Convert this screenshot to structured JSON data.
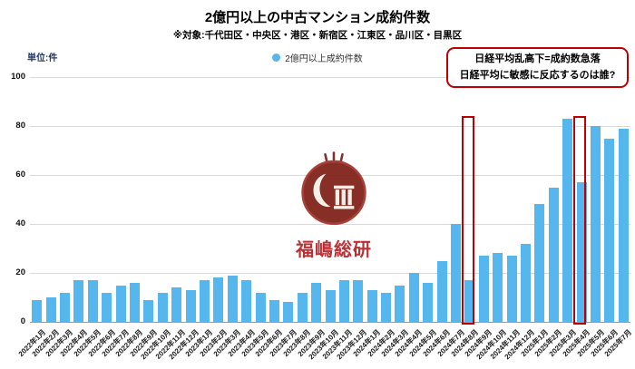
{
  "header": {
    "title": "2億円以上の中古マンション成約件数",
    "subtitle": "※対象:千代田区・中央区・港区・新宿区・江東区・品川区・目黒区",
    "unit_label": "単位:件",
    "legend_label": "2億円以上成約件数"
  },
  "annotation": {
    "line1": "日経平均乱高下=成約数急落",
    "line2": "日経平均に敏感に反応するのは誰?"
  },
  "watermark": {
    "text": "福嶋総研"
  },
  "colors": {
    "bar": "#55b7ee",
    "highlight": "#c00000",
    "grid": "#d9d9d9",
    "unit_label": "#203864",
    "watermark_red": "#b41f24"
  },
  "chart_data": {
    "type": "bar",
    "title": "2億円以上の中古マンション成約件数",
    "ylabel": "件",
    "ylim": [
      0,
      100
    ],
    "yticks": [
      0,
      20,
      40,
      60,
      80,
      100
    ],
    "grid": true,
    "legend_position": "top",
    "series_name": "2億円以上成約件数",
    "categories": [
      "2022年1月",
      "2022年2月",
      "2022年3月",
      "2022年4月",
      "2022年5月",
      "2022年6月",
      "2022年7月",
      "2022年8月",
      "2022年9月",
      "2022年10月",
      "2022年11月",
      "2022年12月",
      "2023年1月",
      "2023年2月",
      "2023年3月",
      "2023年4月",
      "2023年5月",
      "2023年6月",
      "2023年7月",
      "2023年8月",
      "2023年9月",
      "2023年10月",
      "2023年11月",
      "2023年12月",
      "2024年1月",
      "2024年2月",
      "2024年3月",
      "2024年4月",
      "2024年5月",
      "2024年6月",
      "2024年7月",
      "2024年8月",
      "2024年9月",
      "2024年10月",
      "2024年11月",
      "2024年12月",
      "2025年1月",
      "2025年2月",
      "2025年3月",
      "2025年4月",
      "2025年5月",
      "2025年6月",
      "2025年7月"
    ],
    "values": [
      9,
      10,
      12,
      17,
      17,
      12,
      15,
      16,
      9,
      12,
      14,
      13,
      17,
      18,
      19,
      17,
      12,
      9,
      8,
      12,
      16,
      13,
      17,
      17,
      13,
      12,
      15,
      20,
      16,
      25,
      40,
      17,
      27,
      28,
      27,
      32,
      48,
      55,
      83,
      57,
      80,
      75,
      79
    ],
    "highlighted_categories": [
      "2024年8月",
      "2025年4月"
    ],
    "highlight_box_top_value": 84
  }
}
